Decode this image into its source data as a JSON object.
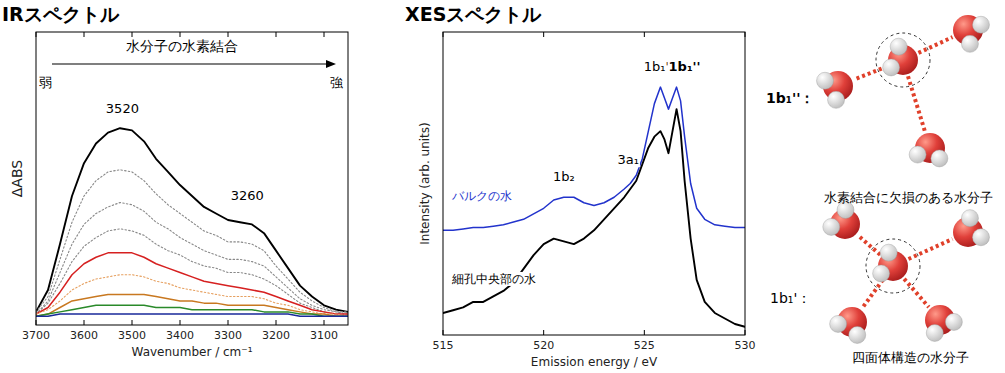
{
  "chart_data": [
    {
      "type": "line",
      "title": "IRスペクトル",
      "subtitle": "水分子の水素結合",
      "x_label": "Wavenumber / cm⁻¹",
      "y_label": "ΔABS",
      "x": [
        3700,
        3675,
        3650,
        3625,
        3600,
        3575,
        3550,
        3525,
        3500,
        3475,
        3450,
        3425,
        3400,
        3375,
        3350,
        3325,
        3300,
        3275,
        3250,
        3225,
        3200,
        3175,
        3150,
        3125,
        3100,
        3075,
        3050
      ],
      "series": [
        {
          "color": "#000000",
          "line_style": "solid",
          "values": [
            2,
            12,
            33,
            55,
            70,
            79,
            84,
            86,
            85,
            80,
            72,
            66,
            60,
            55,
            50,
            47,
            44,
            43,
            42,
            38,
            30,
            22,
            14,
            9,
            5,
            3,
            2
          ]
        },
        {
          "color": "#888888",
          "line_style": "dotted",
          "values": [
            2,
            9,
            26,
            43,
            55,
            62,
            66,
            67,
            66,
            62,
            56,
            51,
            47,
            43,
            39,
            37,
            34,
            34,
            33,
            30,
            23,
            17,
            11,
            7,
            4,
            2,
            2
          ]
        },
        {
          "color": "#888888",
          "line_style": "dotted",
          "values": [
            1,
            7,
            20,
            33,
            42,
            47,
            50,
            52,
            51,
            48,
            43,
            40,
            36,
            33,
            30,
            28,
            26,
            26,
            25,
            23,
            18,
            13,
            8,
            5,
            3,
            2,
            1
          ]
        },
        {
          "color": "#888888",
          "line_style": "dotted",
          "values": [
            1,
            6,
            15,
            25,
            32,
            36,
            39,
            40,
            39,
            37,
            33,
            30,
            28,
            25,
            23,
            22,
            20,
            20,
            19,
            17,
            14,
            10,
            6,
            4,
            2,
            1,
            1
          ]
        },
        {
          "color": "#d62020",
          "line_style": "solid",
          "values": [
            1,
            4,
            11,
            19,
            24,
            27,
            29,
            29,
            29,
            27,
            24,
            22,
            20,
            18,
            16,
            15,
            14,
            13,
            12,
            11,
            9,
            7,
            5,
            3,
            2,
            1,
            1
          ]
        },
        {
          "color": "#e6a060",
          "line_style": "dotted",
          "values": [
            1,
            3,
            7,
            12,
            15,
            17,
            18,
            19,
            19,
            18,
            16,
            15,
            13,
            12,
            11,
            10,
            9,
            9,
            9,
            8,
            6,
            5,
            3,
            2,
            1,
            1,
            0
          ]
        },
        {
          "color": "#c87820",
          "line_style": "solid",
          "values": [
            0,
            1,
            4,
            7,
            8,
            9,
            10,
            10,
            10,
            10,
            9,
            8,
            7,
            7,
            6,
            6,
            5,
            5,
            5,
            5,
            4,
            3,
            2,
            1,
            1,
            0,
            0
          ]
        },
        {
          "color": "#2a8a2a",
          "line_style": "solid",
          "values": [
            0,
            1,
            2,
            3,
            4,
            5,
            5,
            5,
            5,
            5,
            4,
            4,
            4,
            3,
            3,
            3,
            3,
            3,
            3,
            2,
            2,
            2,
            1,
            1,
            0,
            0,
            0
          ]
        },
        {
          "color": "#1a2a9a",
          "line_style": "solid",
          "values": [
            0,
            0,
            1,
            1,
            1,
            1,
            1,
            1,
            1,
            1,
            1,
            1,
            1,
            1,
            1,
            1,
            1,
            1,
            1,
            1,
            1,
            1,
            0,
            0,
            0,
            0,
            0
          ]
        }
      ],
      "xlim": [
        3700,
        3050
      ],
      "xticks": [
        3700,
        3600,
        3500,
        3400,
        3300,
        3200,
        3100
      ],
      "ylim": [
        -4,
        130
      ],
      "tick_labels": "x",
      "annotations": [
        {
          "text": "3520",
          "x": 3520,
          "y": 93
        },
        {
          "text": "3260",
          "x": 3260,
          "y": 53
        },
        {
          "text": "弱",
          "x": 3680,
          "y": 105
        },
        {
          "text": "強",
          "x": 3075,
          "y": 105
        }
      ]
    },
    {
      "type": "line",
      "title": "XESスペクトル",
      "x_label": "Emission energy / eV",
      "y_label": "Intensity (arb. units)",
      "x": [
        515,
        515.5,
        516,
        516.5,
        517,
        517.5,
        518,
        518.5,
        519,
        519.5,
        520,
        520.5,
        521,
        521.5,
        522,
        522.5,
        523,
        523.5,
        524,
        524.3,
        524.6,
        524.9,
        525.2,
        525.5,
        525.8,
        526.0,
        526.2,
        526.4,
        526.6,
        526.8,
        527.0,
        527.3,
        527.6,
        528,
        528.5,
        529,
        529.5,
        530
      ],
      "series": [
        {
          "name": "バルクの水",
          "color": "#2233cc",
          "line_style": "solid",
          "values": [
            38,
            38,
            38.5,
            39,
            39,
            39.5,
            40,
            41,
            42,
            44,
            46,
            49,
            50,
            50,
            48,
            47,
            48,
            50,
            53,
            55,
            58,
            64,
            74,
            84,
            90,
            86,
            82,
            86,
            90,
            85,
            72,
            55,
            46,
            42,
            40,
            39.5,
            39,
            39
          ]
        },
        {
          "name": "細孔中央部の水",
          "color": "#000000",
          "line_style": "solid",
          "values": [
            8,
            9,
            10,
            12,
            12,
            14,
            16,
            19,
            24,
            29,
            33,
            35,
            34,
            33,
            35,
            38,
            42,
            46,
            50,
            53,
            56,
            62,
            68,
            72,
            74,
            71,
            66,
            74,
            82,
            74,
            56,
            35,
            20,
            12,
            8,
            6,
            4,
            3
          ]
        }
      ],
      "xlim": [
        515,
        530
      ],
      "xticks": [
        515,
        520,
        525,
        530
      ],
      "ylim": [
        0,
        110
      ],
      "tick_labels": "x",
      "annotations": [
        {
          "text": "1b₂",
          "x": 521,
          "y": 56
        },
        {
          "text": "3a₁",
          "x": 524.2,
          "y": 62
        },
        {
          "text": "1b₁'",
          "x": 525.6,
          "y": 96
        },
        {
          "text": "1b₁''",
          "x": 527.0,
          "y": 96
        }
      ]
    }
  ],
  "diagram": {
    "items": [
      {
        "label": "1b₁''：",
        "caption": "水素結合に欠損のある水分子"
      },
      {
        "label": "1b₁'：",
        "caption": "四面体構造の水分子"
      }
    ]
  }
}
